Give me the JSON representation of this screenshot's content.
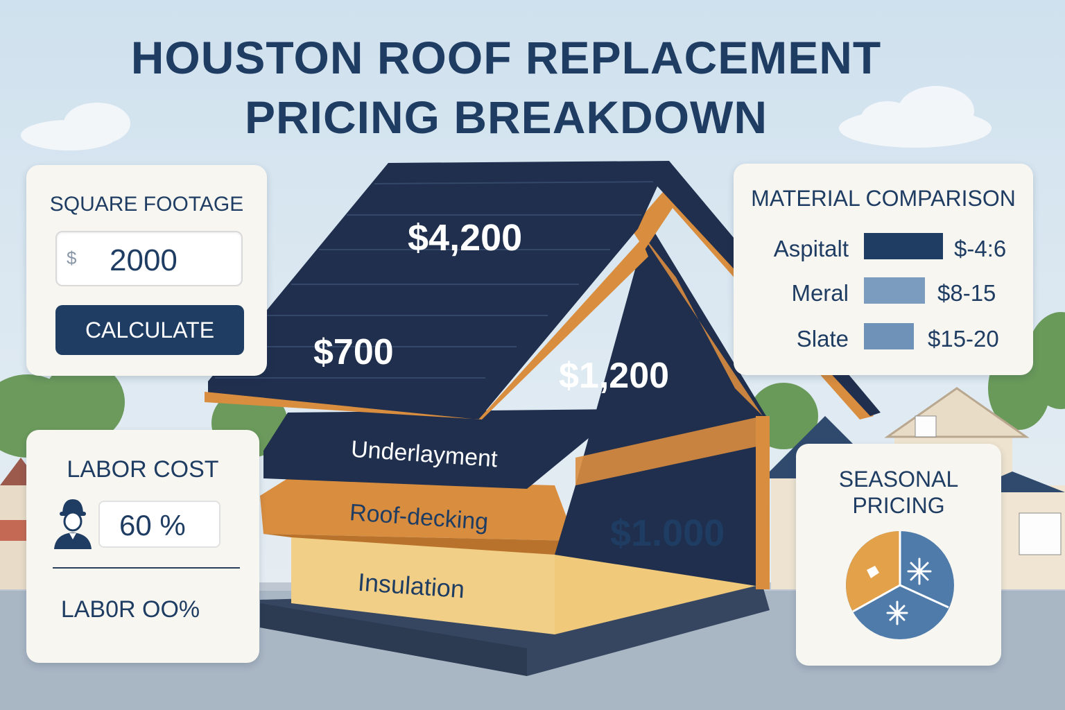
{
  "title_line1": "HOUSTON ROOF REPLACEMENT",
  "title_line2": "PRICING BREAKDOWN",
  "square_footage": {
    "heading": "SQUARE FOOTAGE",
    "prefix": "$",
    "value": "2000",
    "button_label": "CALCULATE"
  },
  "labor": {
    "heading": "LABOR COST",
    "value": "60 %",
    "footer": "LAB0R OO%"
  },
  "material_comparison": {
    "heading": "MATERIAL COMPARISON",
    "items": [
      {
        "name": "Aspitalt",
        "price": "$-4:6",
        "color": "#1f3d63"
      },
      {
        "name": "Meral",
        "price": "$8-15",
        "color": "#7b9cbf"
      },
      {
        "name": "Slate",
        "price": "$15-20",
        "color": "#6f92b8"
      }
    ]
  },
  "seasonal": {
    "heading_line1": "SEASONAL",
    "heading_line2": "PRICING",
    "colors": {
      "summer": "#e3a24a",
      "winter": "#4f7bab"
    }
  },
  "house": {
    "shingles_price": "$4,200",
    "left_price": "$700",
    "gable_price": "$1,200",
    "wall_price": "$1.000",
    "underlayment_label": "Underlayment",
    "decking_label": "Roof-decking",
    "insulation_label": "Insulation",
    "colors": {
      "roof": "#1f2f4d",
      "wood": "#d98d3e",
      "insulation": "#f2cf86"
    }
  }
}
